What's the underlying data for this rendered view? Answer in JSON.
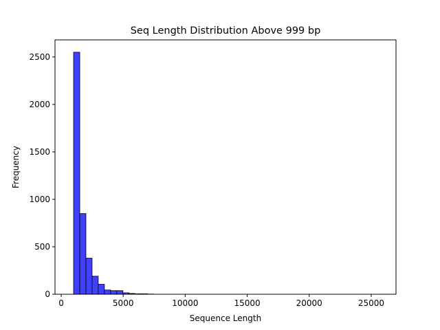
{
  "chart_data": {
    "type": "bar",
    "title": "Seq Length Distribution Above 999 bp",
    "xlabel": "Sequence Length",
    "ylabel": "Frequency",
    "xlim": [
      -500,
      27000
    ],
    "ylim": [
      0,
      2680
    ],
    "x_ticks": [
      0,
      5000,
      10000,
      15000,
      20000,
      25000
    ],
    "y_ticks": [
      0,
      500,
      1000,
      1500,
      2000,
      2500
    ],
    "grid": false,
    "legend": "none",
    "bar_color": "#4040ff",
    "edge_color": "#000000",
    "bins": [
      {
        "start": 1000,
        "end": 1497,
        "count": 2550
      },
      {
        "start": 1497,
        "end": 1994,
        "count": 850
      },
      {
        "start": 1994,
        "end": 2491,
        "count": 380
      },
      {
        "start": 2491,
        "end": 2988,
        "count": 190
      },
      {
        "start": 2988,
        "end": 3485,
        "count": 105
      },
      {
        "start": 3485,
        "end": 3982,
        "count": 45
      },
      {
        "start": 3982,
        "end": 4479,
        "count": 38
      },
      {
        "start": 4479,
        "end": 4976,
        "count": 38
      },
      {
        "start": 4976,
        "end": 5473,
        "count": 15
      },
      {
        "start": 5473,
        "end": 5970,
        "count": 8
      },
      {
        "start": 5970,
        "end": 6467,
        "count": 5
      },
      {
        "start": 6467,
        "end": 6964,
        "count": 5
      },
      {
        "start": 6964,
        "end": 7461,
        "count": 2
      },
      {
        "start": 25850,
        "end": 26347,
        "count": 1
      }
    ]
  }
}
